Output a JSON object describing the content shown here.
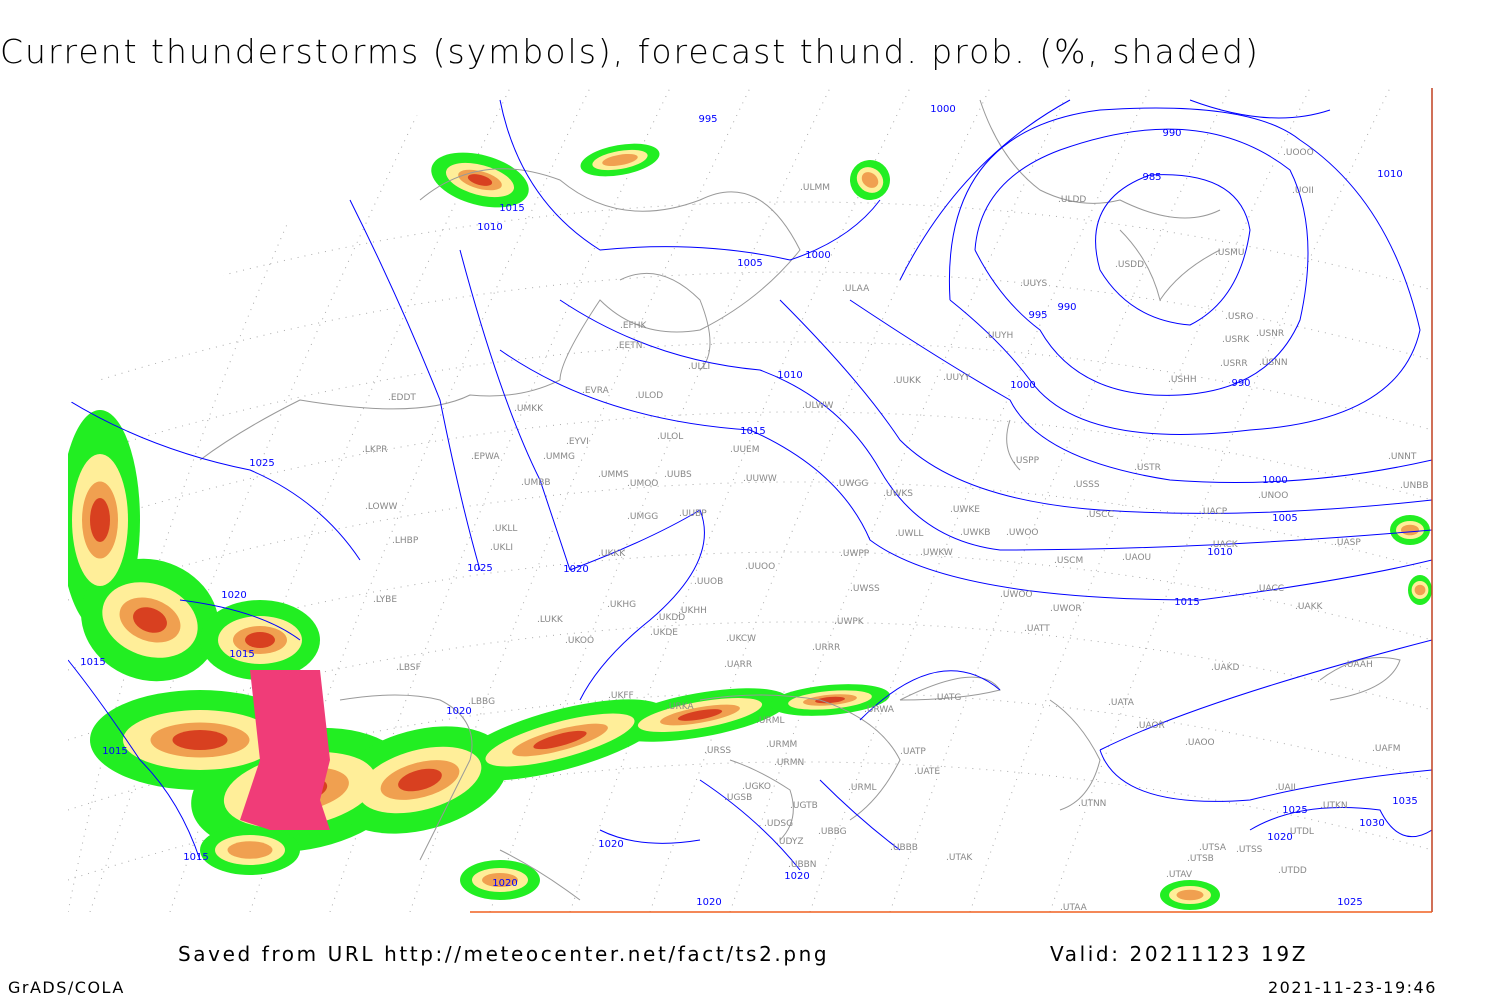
{
  "title": "Current thunderstorms (symbols), forecast thund. prob. (%, shaded)",
  "footer": {
    "source": "Saved from URL http://meteocenter.net/fact/ts2.png",
    "valid": "Valid: 20211123 19Z",
    "software": "GrADS/COLA",
    "timestamp": "2021-11-23-19:46"
  },
  "map": {
    "colors": {
      "isobar": "#0000ff",
      "coast": "#999999",
      "prob_low": "#22ee22",
      "prob_mid": "#ffee99",
      "prob_high": "#f0a050",
      "prob_vhigh": "#d84020",
      "prob_max": "#f03c78"
    },
    "isobar_labels": [
      "995",
      "1000",
      "990",
      "985",
      "990",
      "995",
      "1000",
      "1010",
      "1005",
      "1000",
      "1010",
      "1015",
      "1010",
      "1015",
      "1025",
      "1025",
      "1020",
      "1020",
      "1015",
      "1015",
      "1015",
      "1015",
      "1020",
      "1020",
      "1020",
      "1020",
      "1020",
      "1005",
      "1010",
      "1015",
      "1000",
      "990",
      "1030",
      "1035",
      "1025",
      "1020",
      "1025"
    ],
    "stations": [
      "ULMM",
      "ULDD",
      "USDD",
      "USMU",
      "UUYS",
      "UUYH",
      "USRO",
      "USRK",
      "USNR",
      "USRR",
      "USNN",
      "USHH",
      "UOOO",
      "UOII",
      "ULAA",
      "EFHK",
      "EETN",
      "EVRA",
      "ULOD",
      "ULLI",
      "UUKK",
      "UUYY",
      "ULWW",
      "EDDT",
      "UMKK",
      "EYVI",
      "ULOL",
      "UUEM",
      "LKPR",
      "EPWA",
      "UMMG",
      "UMMS",
      "UMOO",
      "UUBS",
      "UUWW",
      "UMBB",
      "UWGG",
      "UWKS",
      "USPP",
      "USTR",
      "USSS",
      "UNOO",
      "UNNT",
      "UNBB",
      "LOWW",
      "UMGG",
      "UUBP",
      "UKLL",
      "UWKE",
      "UWKB",
      "UWOO",
      "USCC",
      "UACP",
      "LHBP",
      "UKLI",
      "UWLL",
      "UWKW",
      "USCM",
      "UAOU",
      "UACK",
      "UASP",
      "UKKK",
      "UUOO",
      "UWPP",
      "LYBE",
      "UUOB",
      "UWSS",
      "UWOO",
      "UWOR",
      "UACC",
      "UAKK",
      "LUKK",
      "UKHG",
      "UKDD",
      "UKHH",
      "UKDE",
      "UKOO",
      "UKCW",
      "UARR",
      "UATT",
      "UWPK",
      "URRR",
      "LBSF",
      "UAKD",
      "UAAH",
      "UKFF",
      "LBBG",
      "URKA",
      "UATG",
      "URWA",
      "URML",
      "URSS",
      "URMM",
      "URMN",
      "UATA",
      "UAOR",
      "UAOO",
      "UATP",
      "UATE",
      "UGKO",
      "UGSB",
      "UGTB",
      "UDSG",
      "UBBG",
      "UDYZ",
      "UBBB",
      "UTAK",
      "URML",
      "UTNN",
      "UTKN",
      "UAFM",
      "UTSA",
      "UTSS",
      "UTDL",
      "UTDD",
      "UTAV",
      "UTAA",
      "UTSB",
      "UBBN",
      "UAII"
    ]
  }
}
